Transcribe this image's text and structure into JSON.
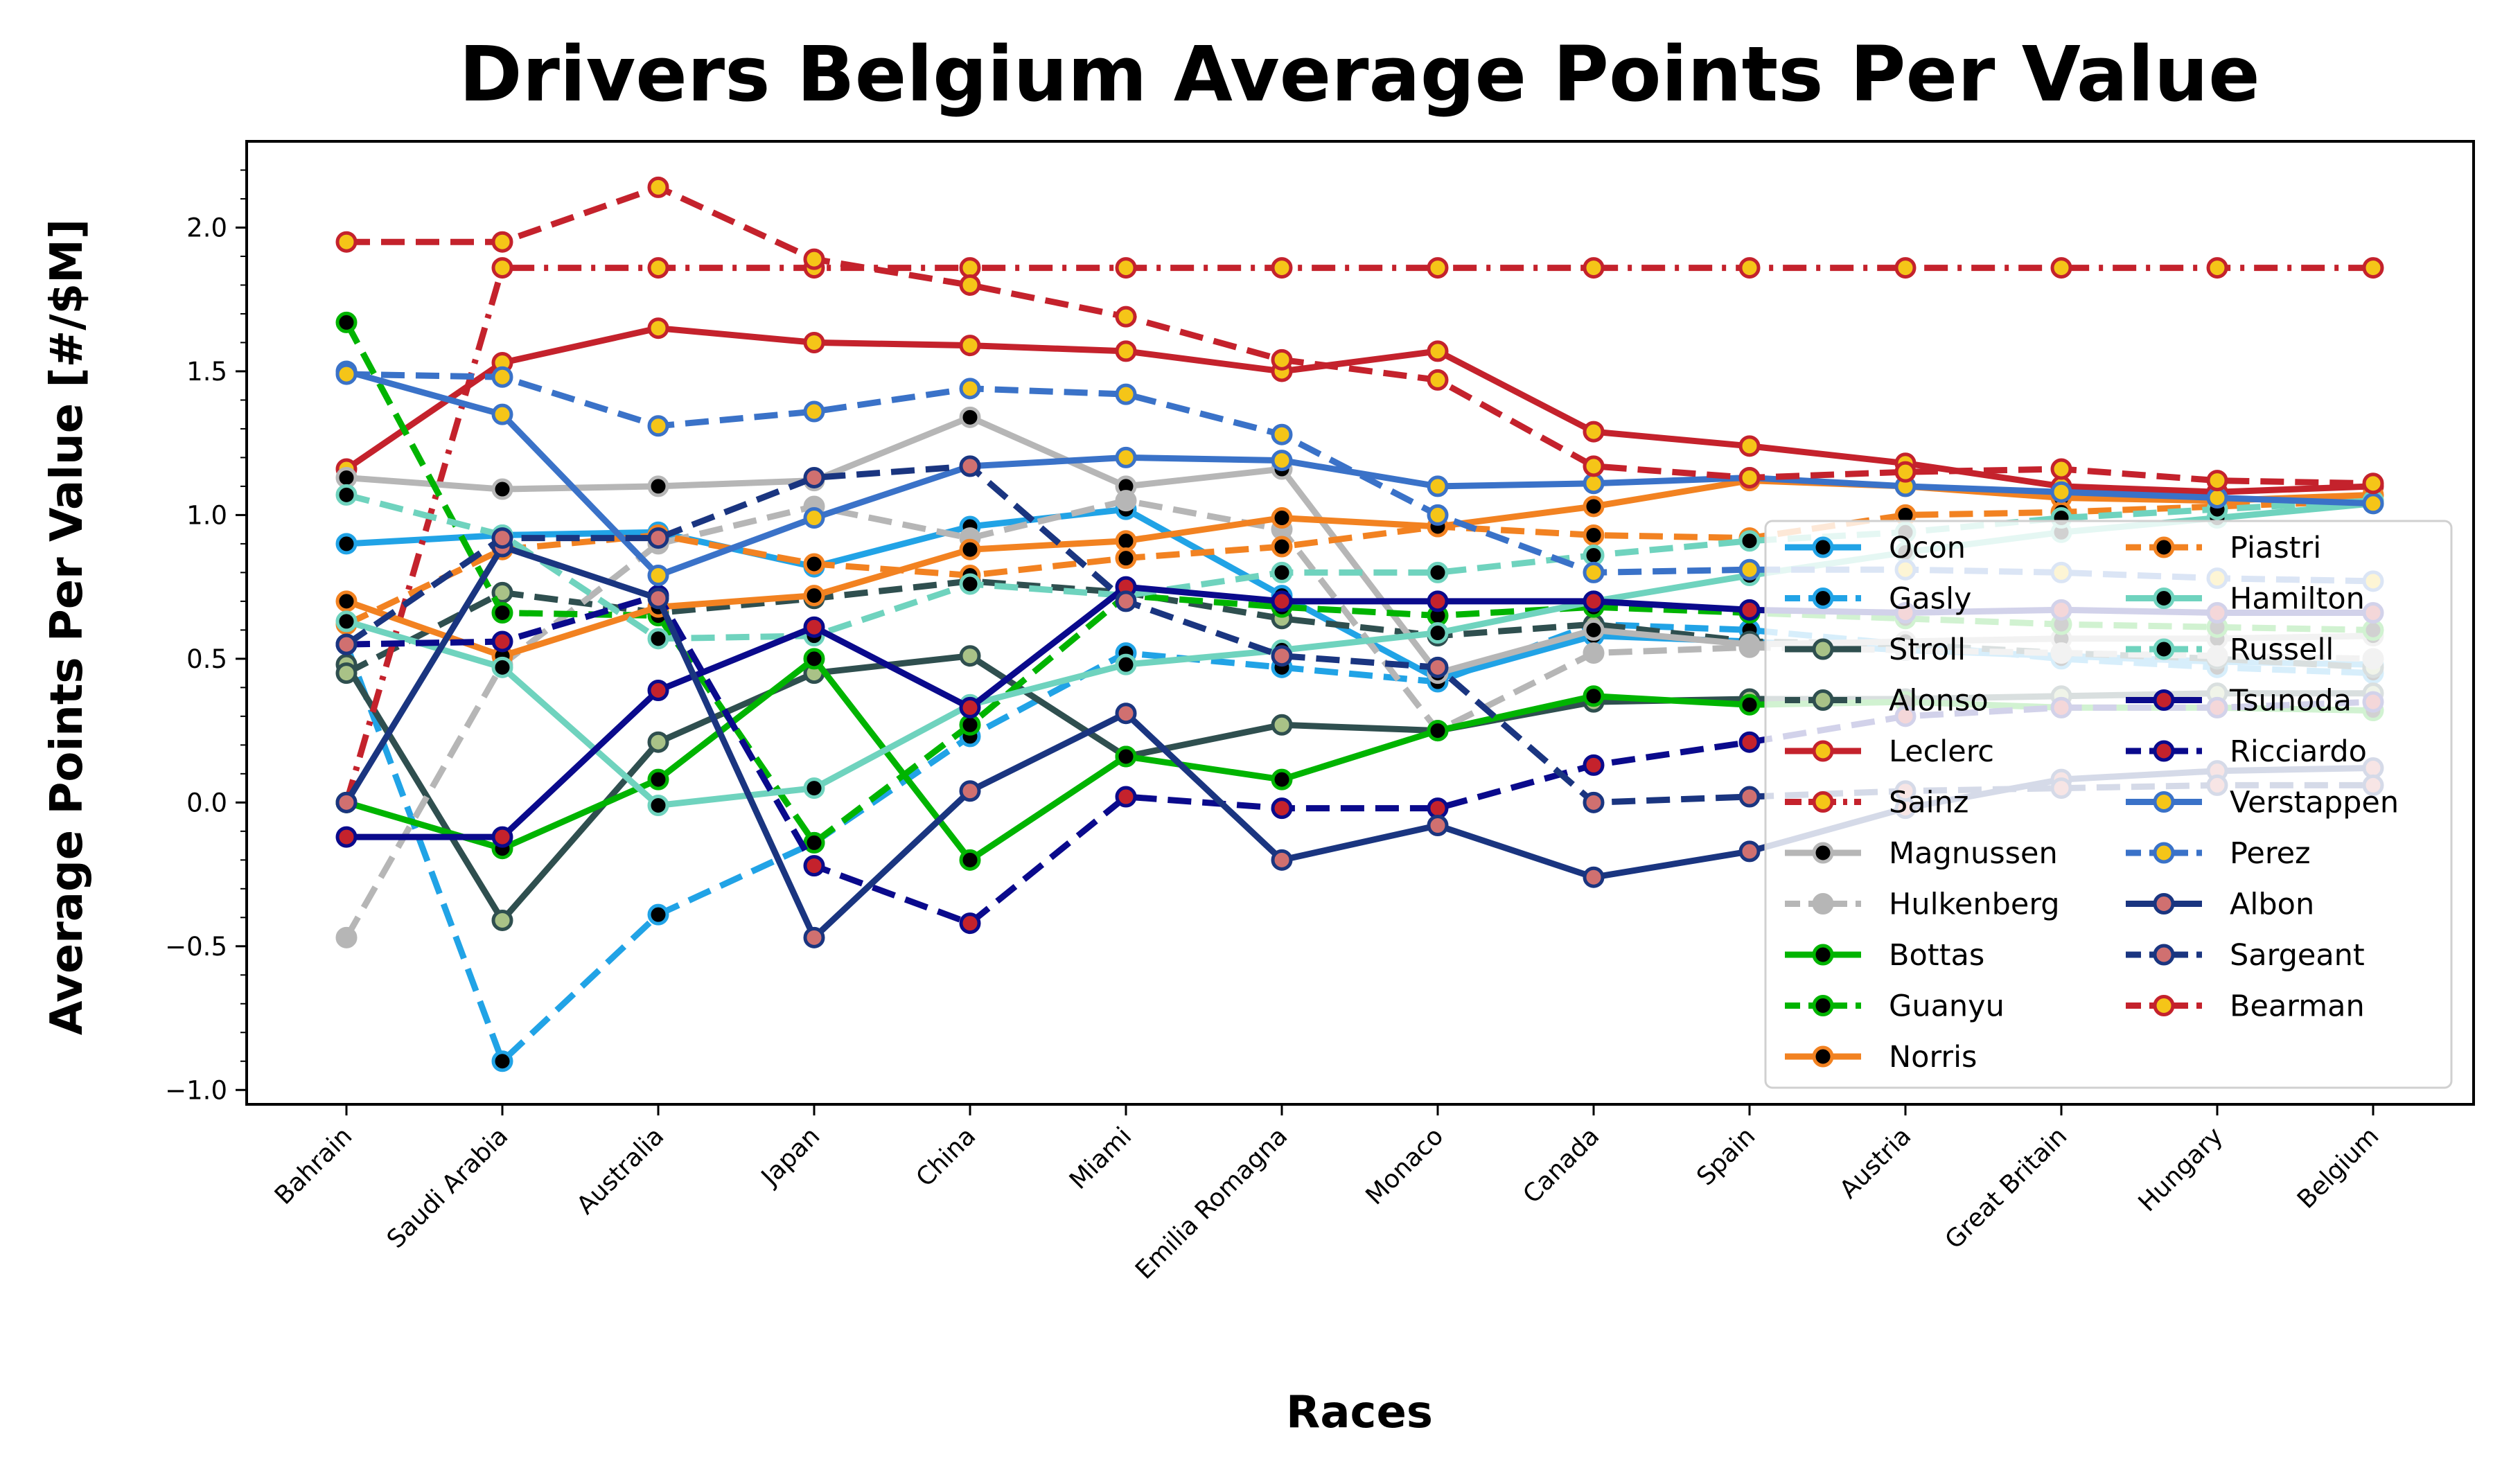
{
  "chart_data": {
    "type": "line",
    "title": "Drivers Belgium Average Points Per Value",
    "xlabel": "Races",
    "ylabel": "Average Points Per Value [#/$M]",
    "ylim": [
      -1.05,
      2.3
    ],
    "yticks": [
      -1.0,
      -0.5,
      0.0,
      0.5,
      1.0,
      1.5,
      2.0
    ],
    "ytick_labels": [
      "−1.0",
      "−0.5",
      "0.0",
      "0.5",
      "1.0",
      "1.5",
      "2.0"
    ],
    "grid": false,
    "legend_position": "lower-right",
    "categories": [
      "Bahrain",
      "Saudi Arabia",
      "Australia",
      "Japan",
      "China",
      "Miami",
      "Emilia Romagna",
      "Monaco",
      "Canada",
      "Spain",
      "Austria",
      "Great Britain",
      "Hungary",
      "Belgium"
    ],
    "series": [
      {
        "name": "Ocon",
        "color": "#21a3e6",
        "marker_fill": "#000000",
        "dash": "solid",
        "values": [
          0.9,
          0.93,
          0.94,
          0.82,
          0.96,
          1.02,
          0.72,
          0.43,
          0.58,
          0.56,
          0.53,
          0.51,
          0.49,
          0.48
        ]
      },
      {
        "name": "Gasly",
        "color": "#21a3e6",
        "marker_fill": "#000000",
        "dash": "dashed",
        "values": [
          0.55,
          -0.9,
          -0.39,
          -0.14,
          0.23,
          0.52,
          0.47,
          0.42,
          0.62,
          0.6,
          0.55,
          0.5,
          0.47,
          0.45
        ]
      },
      {
        "name": "Stroll",
        "color": "#2f4f4f",
        "marker_fill": "#a9c287",
        "dash": "solid",
        "values": [
          0.48,
          -0.41,
          0.21,
          0.45,
          0.51,
          0.16,
          0.27,
          0.25,
          0.35,
          0.36,
          0.36,
          0.37,
          0.38,
          0.38
        ]
      },
      {
        "name": "Alonso",
        "color": "#2f4f4f",
        "marker_fill": "#a9c287",
        "dash": "dashed",
        "values": [
          0.45,
          0.73,
          0.66,
          0.71,
          0.77,
          0.73,
          0.64,
          0.58,
          0.62,
          0.56,
          0.55,
          0.52,
          0.5,
          0.47
        ]
      },
      {
        "name": "Leclerc",
        "color": "#c4222c",
        "marker_fill": "#f5c518",
        "dash": "solid",
        "values": [
          1.16,
          1.53,
          1.65,
          1.6,
          1.59,
          1.57,
          1.5,
          1.57,
          1.29,
          1.24,
          1.18,
          1.1,
          1.08,
          1.1
        ]
      },
      {
        "name": "Sainz",
        "color": "#c4222c",
        "marker_fill": "#f5c518",
        "dash": "dashdot",
        "values": [
          0.0,
          1.86,
          1.86,
          1.86,
          1.86,
          1.86,
          1.86,
          1.86,
          1.86,
          1.86,
          1.86,
          1.86,
          1.86,
          1.86
        ]
      },
      {
        "name": "Magnussen",
        "color": "#b6b6b6",
        "marker_fill": "#000000",
        "dash": "solid",
        "values": [
          1.13,
          1.09,
          1.1,
          1.12,
          1.34,
          1.1,
          1.16,
          0.45,
          0.6,
          0.55,
          0.56,
          0.57,
          0.57,
          0.58
        ]
      },
      {
        "name": "Hulkenberg",
        "color": "#b6b6b6",
        "marker_fill": "#b6b6b6",
        "dash": "dashed",
        "values": [
          -0.47,
          0.48,
          0.9,
          1.03,
          0.92,
          1.05,
          0.95,
          0.25,
          0.52,
          0.54,
          0.53,
          0.52,
          0.51,
          0.5
        ]
      },
      {
        "name": "Bottas",
        "color": "#00b400",
        "marker_fill": "#000000",
        "dash": "solid",
        "values": [
          0.0,
          -0.16,
          0.08,
          0.5,
          -0.2,
          0.16,
          0.08,
          0.25,
          0.37,
          0.34,
          0.35,
          0.33,
          0.33,
          0.32
        ]
      },
      {
        "name": "Guanyu",
        "color": "#00b400",
        "marker_fill": "#000000",
        "dash": "dashed",
        "values": [
          1.67,
          0.66,
          0.65,
          -0.14,
          0.27,
          0.72,
          0.68,
          0.65,
          0.68,
          0.66,
          0.64,
          0.62,
          0.61,
          0.6
        ]
      },
      {
        "name": "Norris",
        "color": "#f28221",
        "marker_fill": "#000000",
        "dash": "solid",
        "values": [
          0.7,
          0.51,
          0.68,
          0.72,
          0.88,
          0.91,
          0.99,
          0.96,
          1.03,
          1.12,
          1.1,
          1.06,
          1.05,
          1.07
        ]
      },
      {
        "name": "Piastri",
        "color": "#f28221",
        "marker_fill": "#000000",
        "dash": "dashed",
        "values": [
          0.62,
          0.88,
          0.93,
          0.83,
          0.79,
          0.85,
          0.89,
          0.96,
          0.93,
          0.92,
          1.0,
          1.01,
          1.03,
          1.05
        ]
      },
      {
        "name": "Hamilton",
        "color": "#6fd3be",
        "marker_fill": "#000000",
        "dash": "solid",
        "values": [
          0.63,
          0.47,
          -0.01,
          0.05,
          0.34,
          0.48,
          0.53,
          0.59,
          0.7,
          0.79,
          0.87,
          0.94,
          0.99,
          1.04
        ]
      },
      {
        "name": "Russell",
        "color": "#6fd3be",
        "marker_fill": "#000000",
        "dash": "dashed",
        "values": [
          1.07,
          0.93,
          0.57,
          0.58,
          0.76,
          0.72,
          0.8,
          0.8,
          0.86,
          0.91,
          0.94,
          0.99,
          1.02,
          1.05
        ]
      },
      {
        "name": "Tsunoda",
        "color": "#0a0a8c",
        "marker_fill": "#c4222c",
        "dash": "solid",
        "values": [
          -0.12,
          -0.12,
          0.39,
          0.61,
          0.33,
          0.75,
          0.7,
          0.7,
          0.7,
          0.67,
          0.66,
          0.67,
          0.66,
          0.66
        ]
      },
      {
        "name": "Ricciardo",
        "color": "#0a0a8c",
        "marker_fill": "#c4222c",
        "dash": "dashed",
        "values": [
          0.55,
          0.56,
          0.72,
          -0.22,
          -0.42,
          0.02,
          -0.02,
          -0.02,
          0.13,
          0.21,
          0.3,
          0.33,
          0.33,
          0.35
        ]
      },
      {
        "name": "Verstappen",
        "color": "#3a72c8",
        "marker_fill": "#f5c518",
        "dash": "solid",
        "values": [
          1.5,
          1.35,
          0.79,
          0.99,
          1.17,
          1.2,
          1.19,
          1.1,
          1.11,
          1.13,
          1.1,
          1.08,
          1.06,
          1.04
        ]
      },
      {
        "name": "Perez",
        "color": "#3a72c8",
        "marker_fill": "#f5c518",
        "dash": "dashed",
        "values": [
          1.49,
          1.48,
          1.31,
          1.36,
          1.44,
          1.42,
          1.28,
          1.0,
          0.8,
          0.81,
          0.81,
          0.8,
          0.78,
          0.77
        ]
      },
      {
        "name": "Albon",
        "color": "#1a3580",
        "marker_fill": "#d07070",
        "dash": "solid",
        "values": [
          0.0,
          0.89,
          0.71,
          -0.47,
          0.04,
          0.31,
          -0.2,
          -0.08,
          -0.26,
          -0.17,
          -0.02,
          0.08,
          0.11,
          0.12
        ]
      },
      {
        "name": "Sargeant",
        "color": "#1a3580",
        "marker_fill": "#d07070",
        "dash": "dashed",
        "values": [
          0.55,
          0.92,
          0.92,
          1.13,
          1.17,
          0.7,
          0.51,
          0.47,
          0.0,
          0.02,
          0.04,
          0.05,
          0.06,
          0.06
        ]
      },
      {
        "name": "Bearman",
        "color": "#c4222c",
        "marker_fill": "#f5c518",
        "dash": "dashed",
        "values": [
          1.95,
          1.95,
          2.14,
          1.89,
          1.8,
          1.69,
          1.54,
          1.47,
          1.17,
          1.13,
          1.15,
          1.16,
          1.12,
          1.11
        ]
      }
    ]
  }
}
